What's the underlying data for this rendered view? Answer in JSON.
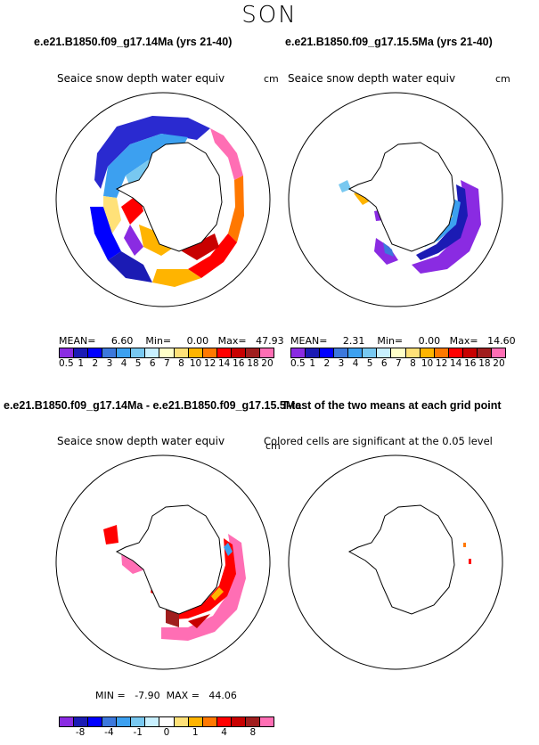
{
  "season": "SON",
  "panels": {
    "top_left": {
      "title": "e.e21.B1850.f09_g17.14Ma (yrs 21-40)",
      "variable": "Seaice snow depth water equiv",
      "units": "cm",
      "stats": {
        "mean_label": "MEAN=",
        "mean": "6.60",
        "min_label": "Min=",
        "min": "0.00",
        "max_label": "Max=",
        "max": "47.93"
      }
    },
    "top_right": {
      "title": "e.e21.B1850.f09_g17.15.5Ma (yrs 21-40)",
      "variable": "Seaice snow depth water equiv",
      "units": "cm",
      "stats": {
        "mean_label": "MEAN=",
        "mean": "2.31",
        "min_label": "Min=",
        "min": "0.00",
        "max_label": "Max=",
        "max": "14.60"
      }
    },
    "bottom_left": {
      "title": "e.e21.B1850.f09_g17.14Ma - e.e21.B1850.f09_g17.15.5Ma",
      "variable": "Seaice snow depth water equiv",
      "units": "cm",
      "stats": {
        "min_label": "MIN =",
        "min": "-7.90",
        "max_label": "MAX =",
        "max": "44.06"
      }
    },
    "bottom_right": {
      "title": "T-test of the two means at each grid point",
      "note": "Colored cells are significant at the 0.05 level"
    }
  },
  "colorbar_top": {
    "colors": [
      "#8a2be2",
      "#1b1bb4",
      "#0000ff",
      "#3c78dc",
      "#3ca0f0",
      "#78c8f0",
      "#c8f0ff",
      "#ffffc8",
      "#ffe178",
      "#ffb400",
      "#ff7800",
      "#ff0000",
      "#c80000",
      "#a01e1e",
      "#ff6eb4"
    ],
    "ticks": [
      "0.5",
      "1",
      "2",
      "3",
      "4",
      "5",
      "6",
      "7",
      "8",
      "10",
      "12",
      "14",
      "16",
      "18",
      "20"
    ]
  },
  "colorbar_bottom": {
    "colors": [
      "#8a2be2",
      "#1b1bb4",
      "#0000ff",
      "#3c78dc",
      "#3ca0f0",
      "#78c8f0",
      "#c8f0ff",
      "#ffffff",
      "#ffe178",
      "#ffb400",
      "#ff7800",
      "#ff0000",
      "#c80000",
      "#a01e1e",
      "#ff6eb4"
    ],
    "ticks": [
      "-8",
      "-4",
      "-1",
      "0",
      "1",
      "4",
      "8"
    ]
  }
}
